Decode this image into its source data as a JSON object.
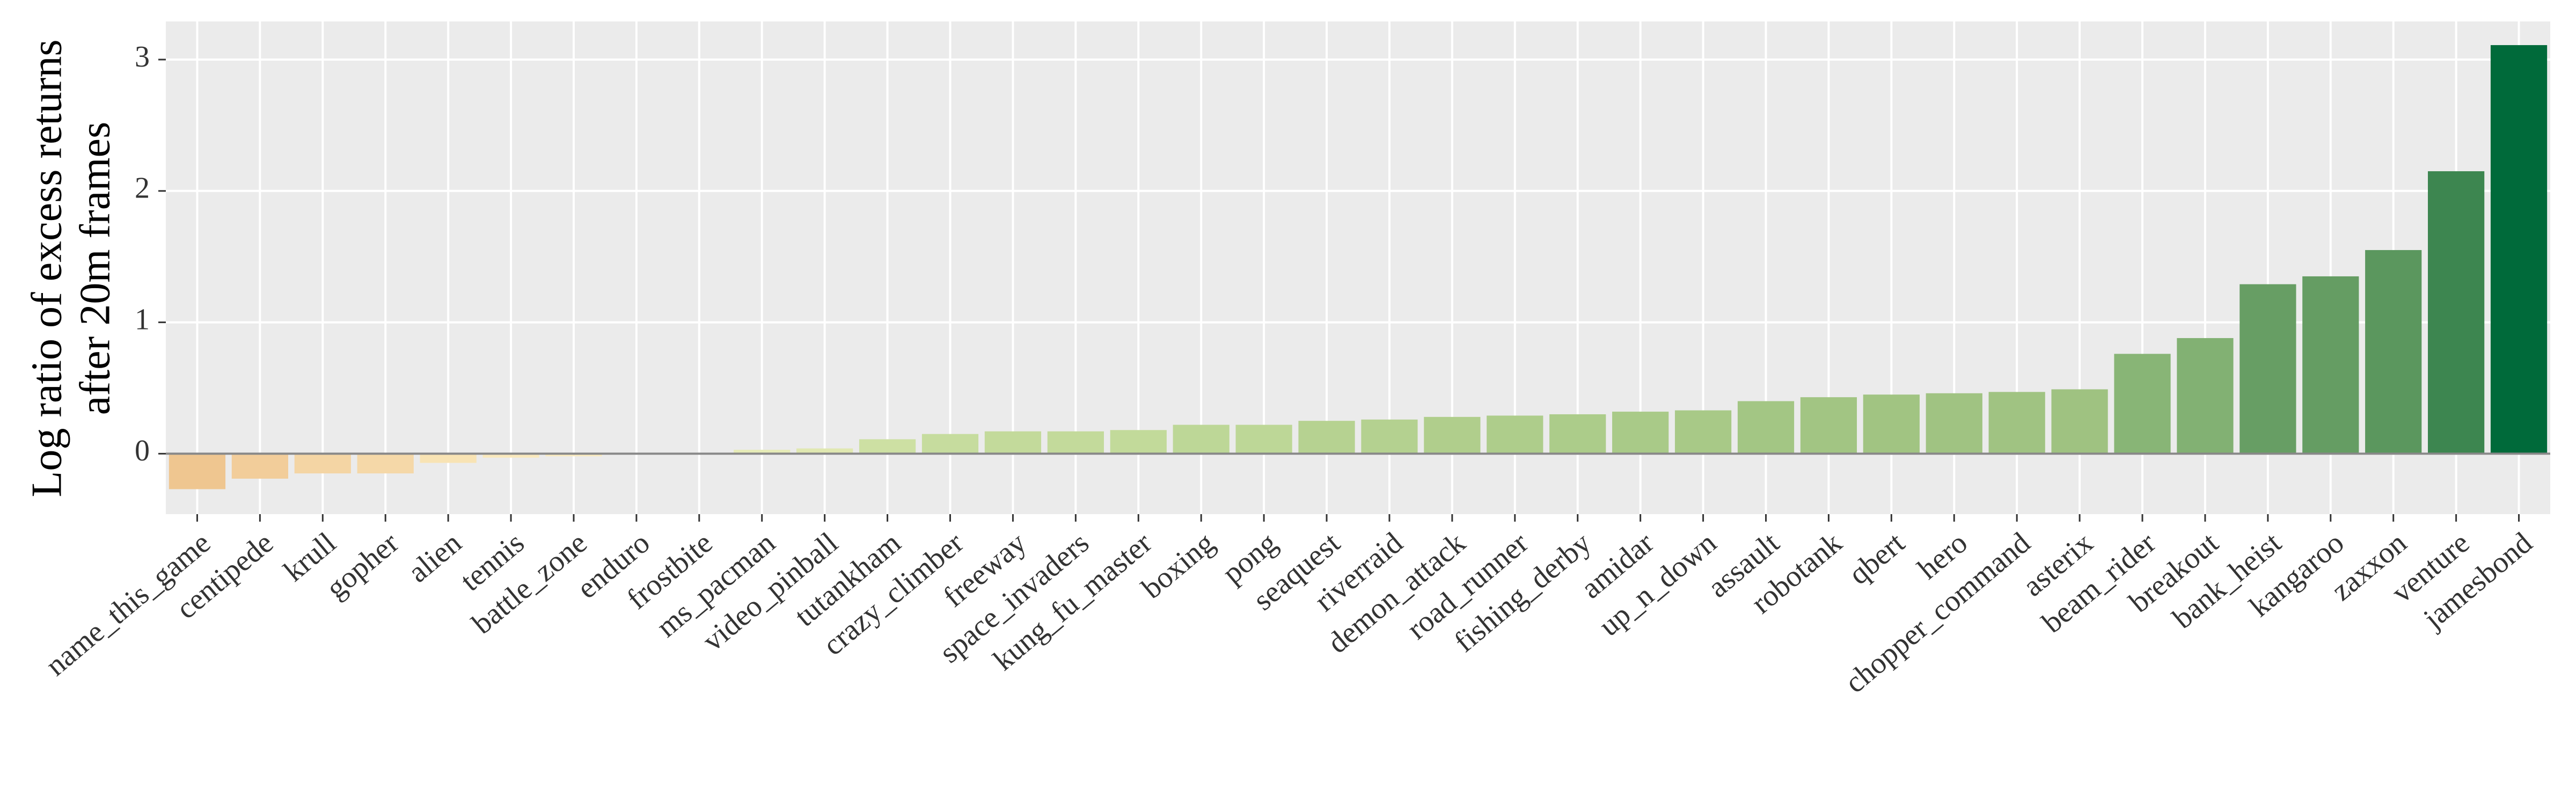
{
  "chart_data": {
    "type": "bar",
    "ylabel": [
      "Log ratio of excess returns",
      "after 20m frames"
    ],
    "categories": [
      "name_this_game",
      "centipede",
      "krull",
      "gopher",
      "alien",
      "tennis",
      "battle_zone",
      "enduro",
      "frostbite",
      "ms_pacman",
      "video_pinball",
      "tutankham",
      "crazy_climber",
      "freeway",
      "space_invaders",
      "kung_fu_master",
      "boxing",
      "pong",
      "seaquest",
      "riverraid",
      "demon_attack",
      "road_runner",
      "fishing_derby",
      "amidar",
      "up_n_down",
      "assault",
      "robotank",
      "qbert",
      "hero",
      "chopper_command",
      "asterix",
      "beam_rider",
      "breakout",
      "bank_heist",
      "kangaroo",
      "zaxxon",
      "venture",
      "jamesbond"
    ],
    "values": [
      -0.27,
      -0.19,
      -0.15,
      -0.15,
      -0.07,
      -0.03,
      -0.02,
      0,
      0,
      0.03,
      0.04,
      0.11,
      0.15,
      0.17,
      0.17,
      0.18,
      0.22,
      0.22,
      0.25,
      0.26,
      0.28,
      0.29,
      0.3,
      0.32,
      0.33,
      0.4,
      0.43,
      0.45,
      0.46,
      0.47,
      0.49,
      0.76,
      0.88,
      1.29,
      1.35,
      1.55,
      2.15,
      3.11
    ],
    "colors": [
      "#efc690",
      "#f2cd9a",
      "#f4d5a4",
      "#f5d8a8",
      "#f8e3b4",
      "#fae9bd",
      "#fbecc1",
      "#fdf3c9",
      "#fdf3c9",
      "#e6ebb7",
      "#e0e8b1",
      "#cde0a3",
      "#c6dc9e",
      "#c3da9b",
      "#c3da9b",
      "#c2da9a",
      "#bdd797",
      "#bdd797",
      "#b6d291",
      "#b4d190",
      "#b0ce8c",
      "#aecd8b",
      "#accc8a",
      "#a9ca88",
      "#a8c987",
      "#a3c684",
      "#a2c583",
      "#a1c482",
      "#a0c382",
      "#a0c382",
      "#9fc281",
      "#88b576",
      "#82b173",
      "#679e64",
      "#659d63",
      "#5b975e",
      "#3d8650",
      "#006a3a"
    ],
    "ylim": [
      -0.46,
      3.29
    ],
    "yticks": [
      0,
      1,
      2,
      3
    ],
    "grid": true
  }
}
